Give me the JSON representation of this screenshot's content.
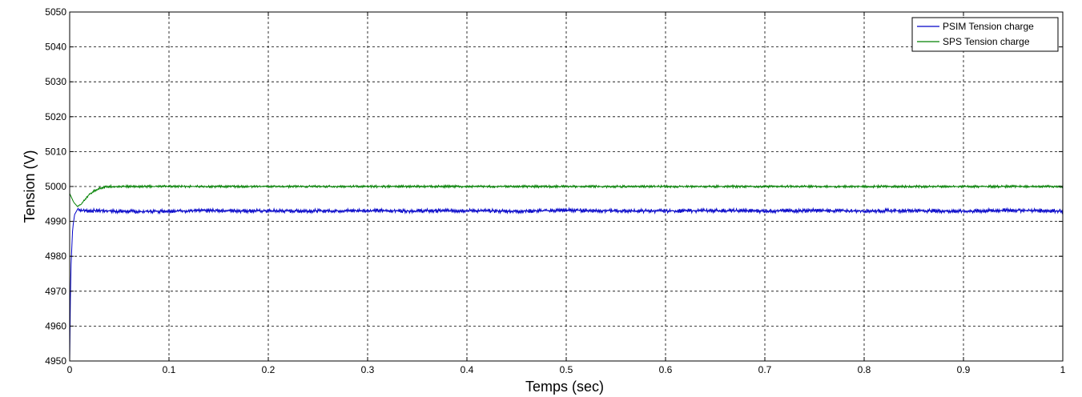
{
  "chart_data": {
    "type": "line",
    "title": "",
    "xlabel": "Temps (sec)",
    "ylabel": "Tension (V)",
    "xlim": [
      0,
      1
    ],
    "ylim": [
      4950,
      5050
    ],
    "xticks": [
      "0",
      "0.1",
      "0.2",
      "0.3",
      "0.4",
      "0.5",
      "0.6",
      "0.7",
      "0.8",
      "0.9",
      "1"
    ],
    "yticks": [
      "4950",
      "4960",
      "4970",
      "4980",
      "4990",
      "5000",
      "5010",
      "5020",
      "5030",
      "5040",
      "5050"
    ],
    "grid": true,
    "legend_position": "top-right",
    "series": [
      {
        "name": "PSIM Tension charge",
        "color": "#0000c8",
        "x": [
          0,
          0.001,
          0.003,
          0.005,
          0.008,
          0.012,
          0.02,
          0.03,
          0.05,
          0.07,
          0.1,
          0.15,
          0.2,
          0.25,
          0.3,
          0.35,
          0.4,
          0.45,
          0.5,
          0.55,
          0.6,
          0.65,
          0.7,
          0.75,
          0.8,
          0.85,
          0.9,
          0.95,
          1.0
        ],
        "y": [
          4950,
          4975,
          4988,
          4992,
          4993.5,
          4993.2,
          4993.0,
          4993.1,
          4992.9,
          4992.8,
          4993.0,
          4993.1,
          4993.0,
          4993.0,
          4993.1,
          4993.0,
          4993.1,
          4992.9,
          4993.2,
          4993.0,
          4993.0,
          4993.1,
          4993.0,
          4993.1,
          4993.0,
          4993.1,
          4992.9,
          4993.2,
          4993.0
        ],
        "ripple": 0.6
      },
      {
        "name": "SPS Tension charge",
        "color": "#008000",
        "x": [
          0,
          0.004,
          0.008,
          0.012,
          0.016,
          0.02,
          0.025,
          0.03,
          0.035,
          0.04,
          0.05,
          0.1,
          0.2,
          0.3,
          0.4,
          0.5,
          0.6,
          0.7,
          0.8,
          0.9,
          1.0
        ],
        "y": [
          4998,
          4995.5,
          4994.2,
          4995,
          4996.5,
          4997.8,
          4998.8,
          4999.5,
          4999.8,
          5000,
          5000,
          5000,
          5000,
          5000,
          5000,
          5000,
          5000,
          5000,
          5000,
          5000,
          5000
        ],
        "ripple": 0.35
      }
    ]
  }
}
